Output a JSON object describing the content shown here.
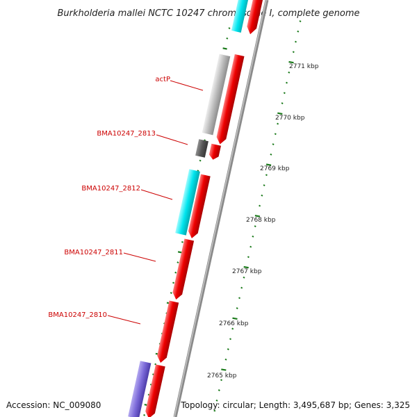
{
  "title": "Burkholderia mallei NCTC 10247 chromosome I, complete genome",
  "accession": "Accession: NC_009080",
  "topology": "Topology: circular; Length: 3,495,687 bp; Genes: 3,325",
  "colors": {
    "forward_gene": "#ee0000",
    "reverse_gene_cyan": "#00e5ee",
    "reverse_gene_gray": "#bbbbbb",
    "reverse_gene_darkgray": "#555555",
    "reverse_gene_purple": "#7a68d8",
    "backbone": "#999999",
    "ticks": "#1a7a1a",
    "label": "#cc0000"
  },
  "gene_labels": [
    "actP",
    "BMA10247_2813",
    "BMA10247_2812",
    "BMA10247_2811",
    "BMA10247_2810"
  ],
  "tick_labels": [
    "2771 kbp",
    "2770 kbp",
    "2769 kbp",
    "2768 kbp",
    "2767 kbp",
    "2766 kbp",
    "2765 kbp"
  ]
}
